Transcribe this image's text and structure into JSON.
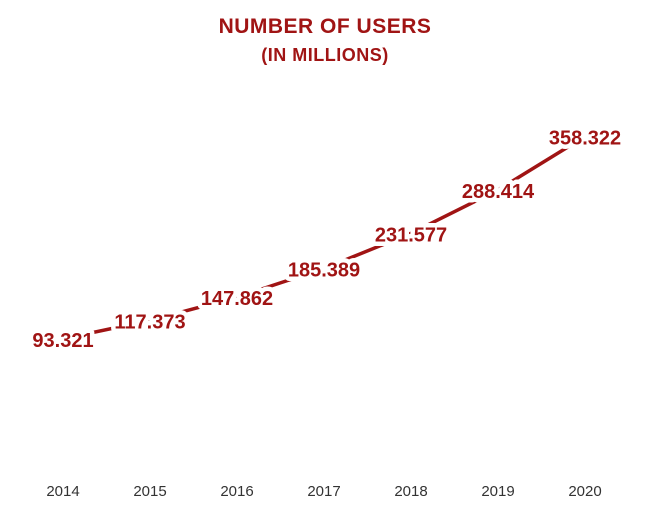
{
  "chart_data": {
    "type": "line",
    "title": "NUMBER OF USERS",
    "subtitle": "(IN MILLIONS)",
    "categories": [
      "2014",
      "2015",
      "2016",
      "2017",
      "2018",
      "2019",
      "2020"
    ],
    "values": [
      93.321,
      117.373,
      147.862,
      185.389,
      231.577,
      288.414,
      358.322
    ],
    "value_labels": [
      "93.321",
      "117.373",
      "147.862",
      "185.389",
      "231.577",
      "288.414",
      "358.322"
    ],
    "xlabel": "",
    "ylabel": "",
    "ylim": [
      0,
      380
    ],
    "grid": false,
    "legend": "none",
    "colors": {
      "accent": "#a01414",
      "stem": "#555555",
      "tick_text": "#333333"
    }
  }
}
